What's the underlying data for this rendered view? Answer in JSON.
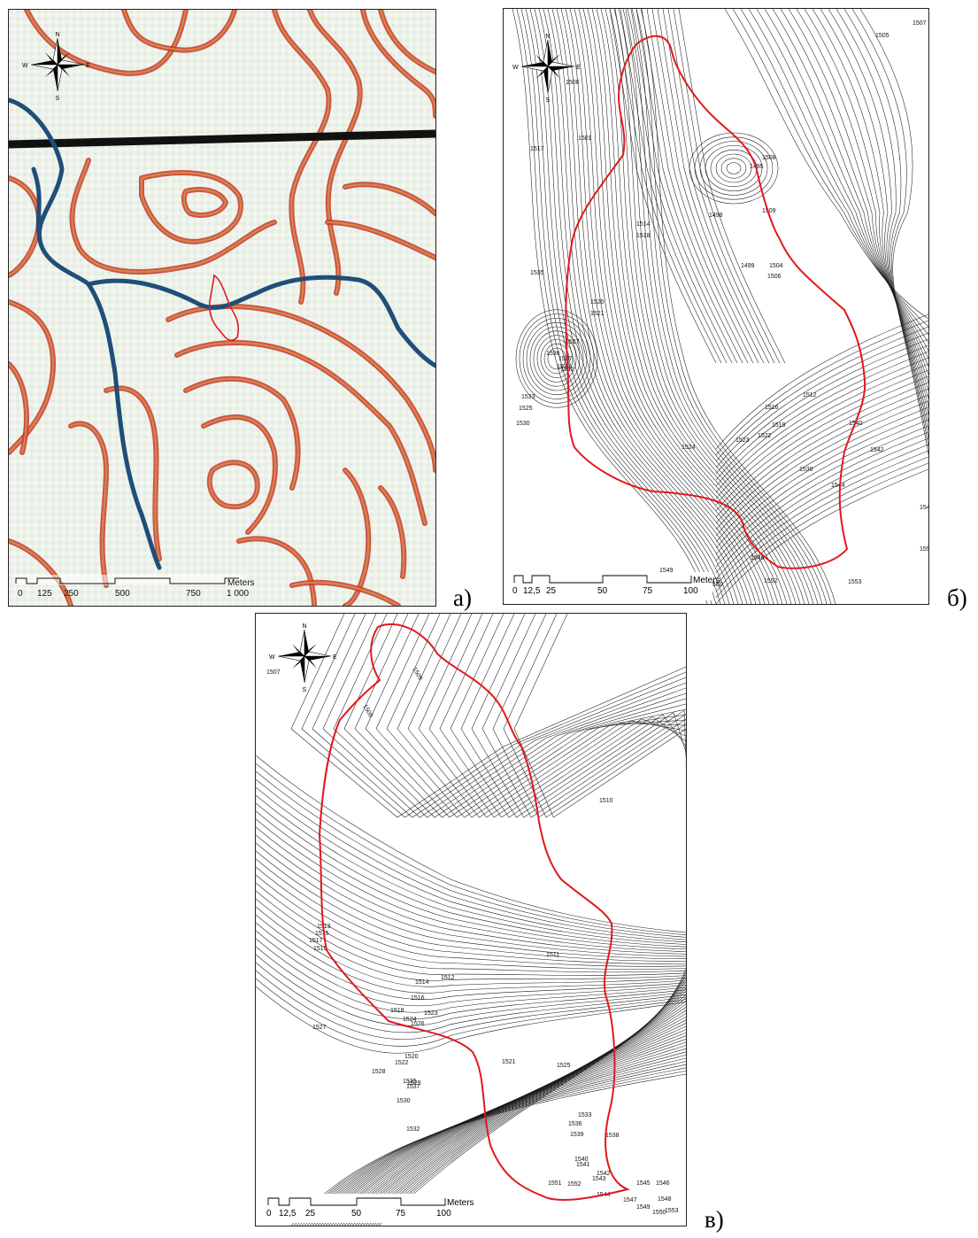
{
  "panels": {
    "a": {
      "label": "а)",
      "scale": {
        "ticks": [
          "0",
          "125",
          "250",
          "500",
          "750",
          "1 000"
        ],
        "unit": "Meters"
      },
      "compass": {
        "n": "N",
        "s": "S",
        "e": "E",
        "w": "W"
      }
    },
    "b": {
      "label": "б)",
      "scale": {
        "ticks": [
          "0",
          "12,5",
          "25",
          "50",
          "75",
          "100"
        ],
        "unit": "Meters"
      },
      "compass": {
        "n": "N",
        "s": "S",
        "e": "E",
        "w": "W"
      },
      "contour_labels": [
        "1505",
        "1507",
        "1495",
        "1498",
        "1499",
        "1500",
        "1501",
        "1504",
        "1506",
        "1508",
        "1509",
        "1512",
        "1514",
        "1516",
        "1517",
        "1518",
        "1519",
        "1520",
        "1521",
        "1522",
        "1523",
        "1524",
        "1525",
        "1527",
        "1530",
        "1532",
        "1533",
        "1534",
        "1535",
        "1536",
        "1537",
        "1538",
        "1540",
        "1542",
        "1544",
        "1546",
        "1548",
        "1549",
        "1550",
        "1551",
        "1552",
        "1553"
      ]
    },
    "c": {
      "label": "в)",
      "scale": {
        "ticks": [
          "0",
          "12,5",
          "25",
          "50",
          "75",
          "100"
        ],
        "unit": "Meters"
      },
      "compass": {
        "n": "N",
        "s": "S",
        "e": "E",
        "w": "W"
      },
      "contour_labels": [
        "1507",
        "1508",
        "1509",
        "1510",
        "1511",
        "1512",
        "1513",
        "1514",
        "1515",
        "1516",
        "1517",
        "1518",
        "1519",
        "1520",
        "1521",
        "1522",
        "1523",
        "1524",
        "1525",
        "1526",
        "1527",
        "1528",
        "1529",
        "1530",
        "1532",
        "1533",
        "1535",
        "1536",
        "1537",
        "1538",
        "1539",
        "1540",
        "1541",
        "1542",
        "1543",
        "1544",
        "1545",
        "1546",
        "1547",
        "1548",
        "1549",
        "1550",
        "1551",
        "1552",
        "1553"
      ]
    }
  },
  "colors": {
    "boundary": "#e0191e",
    "contour_a": "#d8452a",
    "contour_a_dark": "#b5651d",
    "river": "#1f4e79",
    "road": "#111111",
    "contour_bw": "#1a1a1a"
  }
}
